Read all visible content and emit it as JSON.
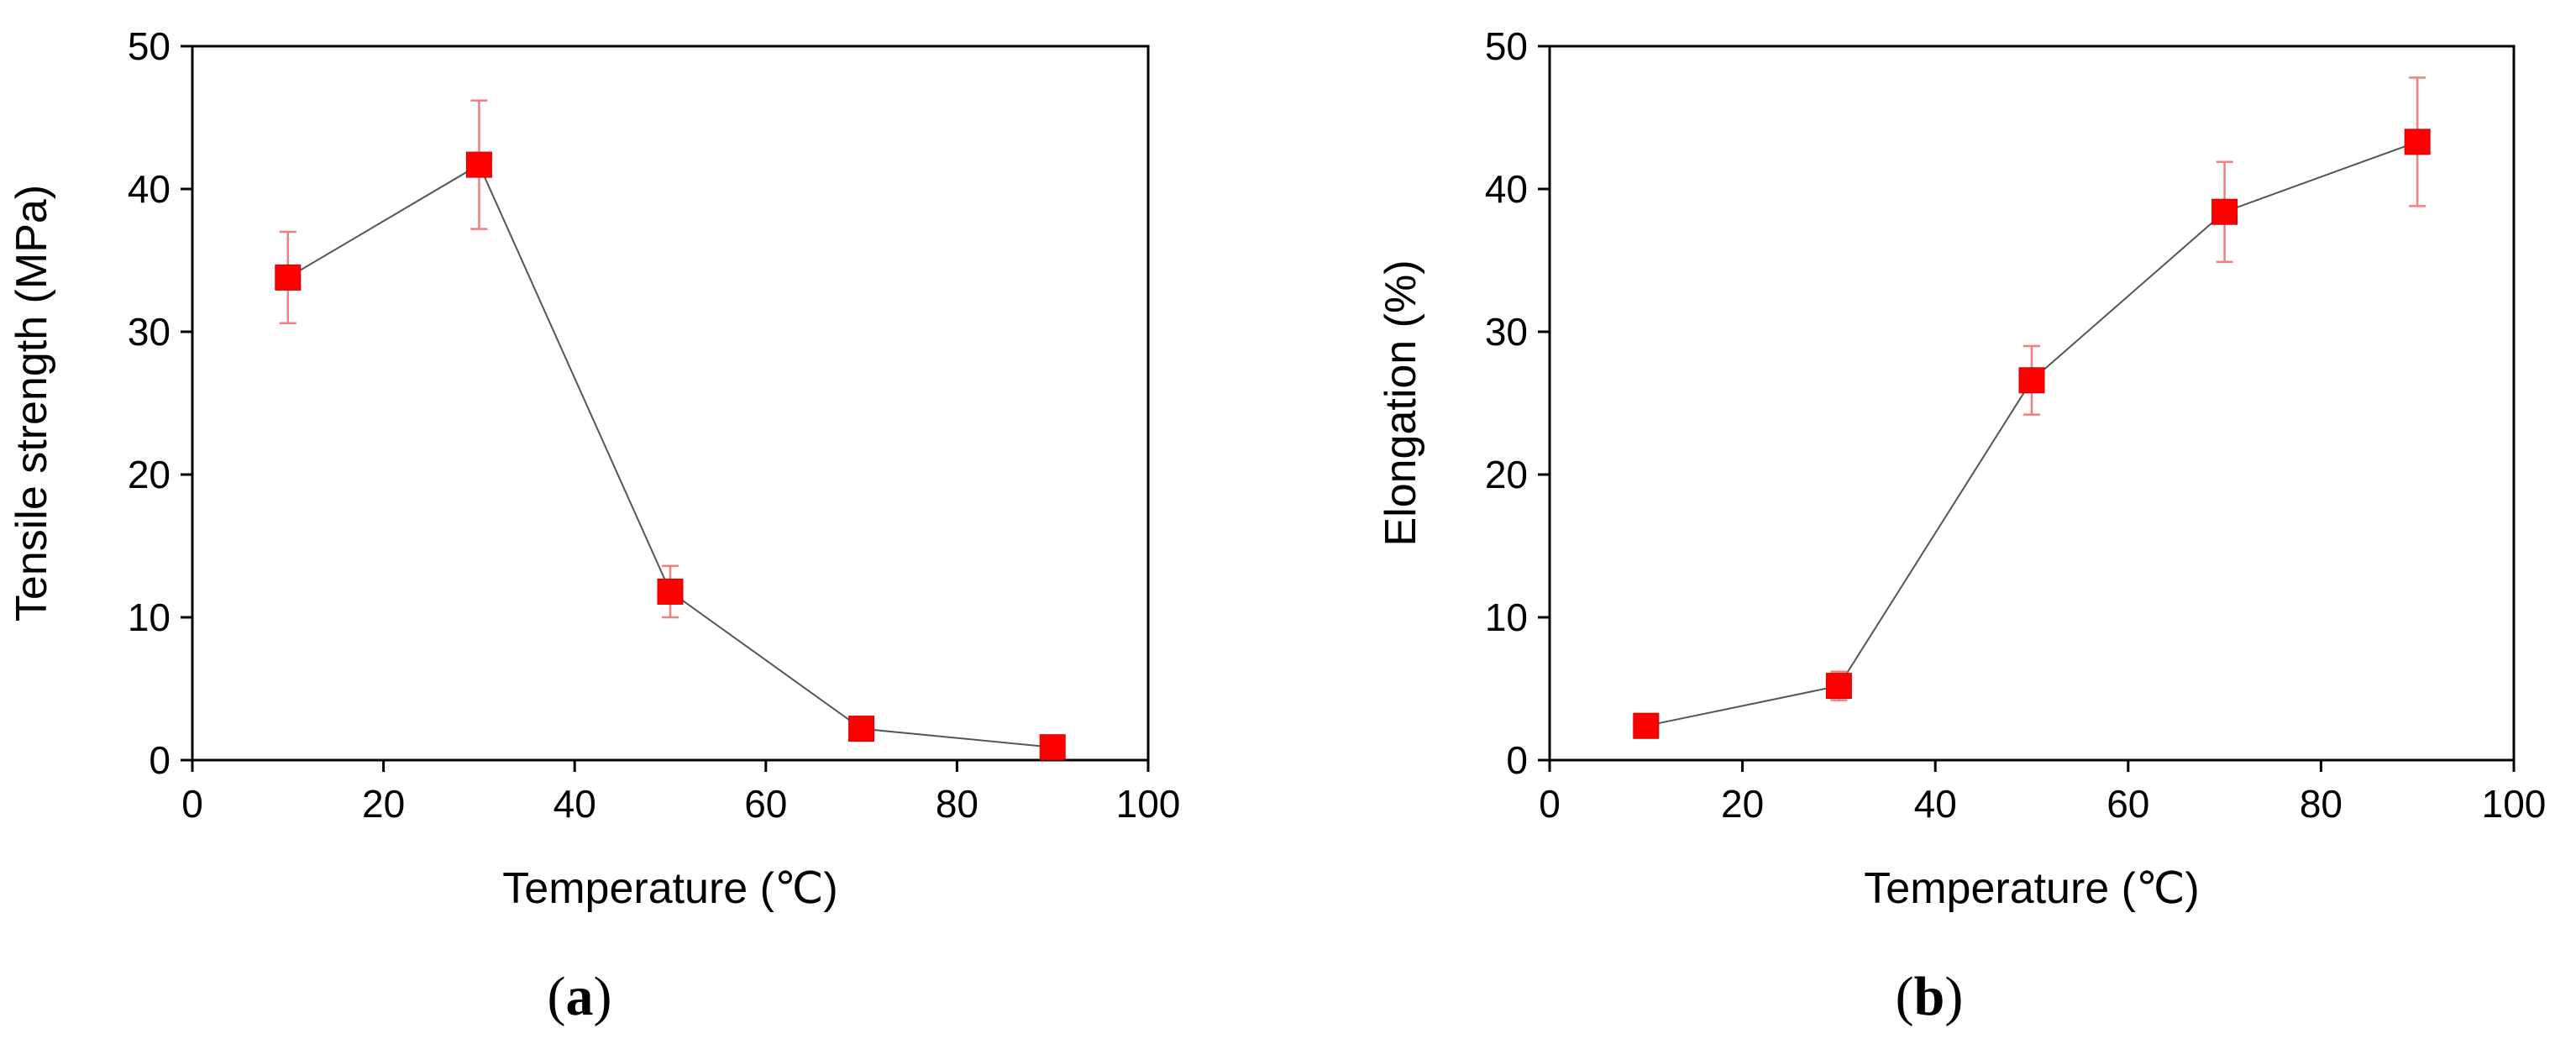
{
  "chart_data": [
    {
      "type": "scatter",
      "panel_label": "a",
      "xlabel": "Temperature (℃)",
      "ylabel": "Tensile strength (MPa)",
      "xlim": [
        0,
        100
      ],
      "ylim": [
        0,
        50
      ],
      "xticks": [
        0,
        20,
        40,
        60,
        80,
        100
      ],
      "yticks": [
        0,
        10,
        20,
        30,
        40,
        50
      ],
      "grid": false,
      "legend": "none",
      "marker": "square",
      "marker_color": "#ff0000",
      "line_color": "#555555",
      "errorbar_color": "#f08080",
      "series": [
        {
          "x": [
            10,
            30,
            50,
            70,
            90
          ],
          "y": [
            33.8,
            41.7,
            11.8,
            2.2,
            0.9
          ],
          "error": [
            3.2,
            4.5,
            1.8,
            0.5,
            0.4
          ]
        }
      ]
    },
    {
      "type": "scatter",
      "panel_label": "b",
      "xlabel": "Temperature (℃)",
      "ylabel": "Elongation (%)",
      "xlim": [
        0,
        100
      ],
      "ylim": [
        0,
        50
      ],
      "xticks": [
        0,
        20,
        40,
        60,
        80,
        100
      ],
      "yticks": [
        0,
        10,
        20,
        30,
        40,
        50
      ],
      "grid": false,
      "legend": "none",
      "marker": "square",
      "marker_color": "#ff0000",
      "line_color": "#555555",
      "errorbar_color": "#f08080",
      "series": [
        {
          "x": [
            10,
            30,
            50,
            70,
            90
          ],
          "y": [
            2.4,
            5.2,
            26.6,
            38.4,
            43.3
          ],
          "error": [
            0.4,
            1.0,
            2.4,
            3.5,
            4.5
          ]
        }
      ]
    }
  ]
}
